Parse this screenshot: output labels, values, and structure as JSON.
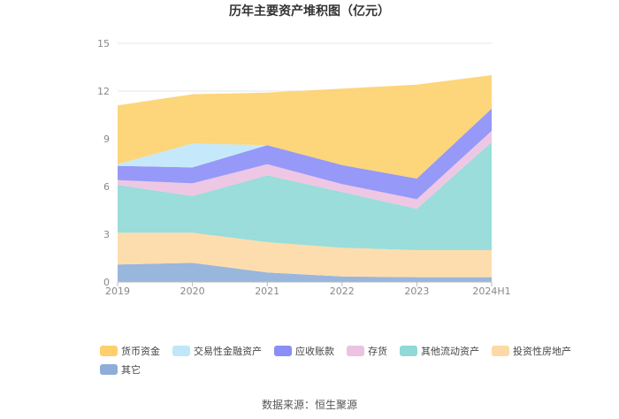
{
  "chart_data": {
    "type": "area",
    "stacked": true,
    "title": "历年主要资产堆积图（亿元）",
    "categories": [
      "2019",
      "2020",
      "2021",
      "2022",
      "2023",
      "2024H1"
    ],
    "ylim": [
      0,
      15
    ],
    "yticks": [
      "0",
      "3",
      "6",
      "9",
      "12",
      "15"
    ],
    "grid": true,
    "legend_position": "bottom",
    "series": [
      {
        "name": "其它",
        "color": "#8eaed9",
        "values": [
          1.1,
          1.2,
          0.6,
          0.35,
          0.3,
          0.3
        ]
      },
      {
        "name": "投资性房地产",
        "color": "#fdd9a5",
        "values": [
          2.0,
          1.9,
          1.9,
          1.8,
          1.7,
          1.7
        ]
      },
      {
        "name": "其他流动资产",
        "color": "#8fd9d6",
        "values": [
          3.0,
          2.3,
          4.2,
          3.5,
          2.6,
          6.8
        ]
      },
      {
        "name": "存货",
        "color": "#ecc1e1",
        "values": [
          0.3,
          0.8,
          0.7,
          0.5,
          0.6,
          0.7
        ]
      },
      {
        "name": "应收账款",
        "color": "#8b8ef6",
        "values": [
          0.9,
          1.0,
          1.2,
          1.2,
          1.3,
          1.4
        ]
      },
      {
        "name": "交易性金融资产",
        "color": "#bfe7f9",
        "values": [
          0.1,
          1.5,
          0.0,
          0.0,
          0.0,
          0.0
        ]
      },
      {
        "name": "货币资金",
        "color": "#fdd06b",
        "values": [
          3.7,
          3.1,
          3.3,
          4.8,
          5.9,
          2.1
        ]
      }
    ],
    "legend_order": [
      "货币资金",
      "交易性金融资产",
      "应收账款",
      "存货",
      "其他流动资产",
      "投资性房地产",
      "其它"
    ]
  },
  "source": "数据来源：恒生聚源"
}
